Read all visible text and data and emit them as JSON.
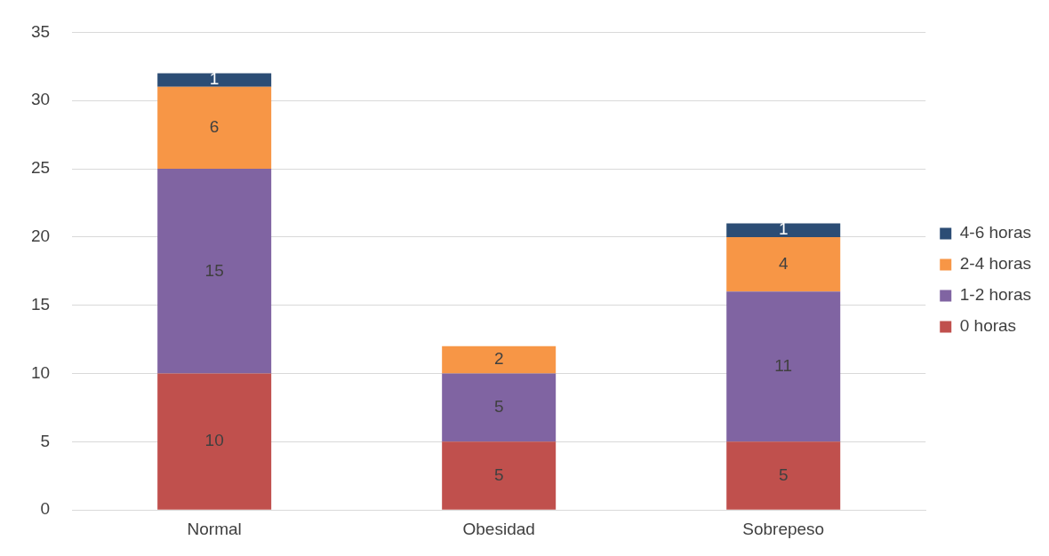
{
  "chart_data": {
    "type": "bar",
    "stacked": true,
    "categories": [
      "Normal",
      "Obesidad",
      "Sobrepeso"
    ],
    "series": [
      {
        "name": "0 horas",
        "color": "#c0504d",
        "values": [
          10,
          5,
          5
        ]
      },
      {
        "name": "1-2 horas",
        "color": "#8064a2",
        "values": [
          15,
          5,
          11
        ]
      },
      {
        "name": "2-4 horas",
        "color": "#f79646",
        "values": [
          6,
          2,
          4
        ]
      },
      {
        "name": "4-6 horas",
        "color": "#2c4d75",
        "values": [
          1,
          null,
          1
        ]
      }
    ],
    "ylim": [
      0,
      35
    ],
    "yticks": [
      0,
      5,
      10,
      15,
      20,
      25,
      30,
      35
    ],
    "grid": "y",
    "legend": "right",
    "data_labels": true
  }
}
